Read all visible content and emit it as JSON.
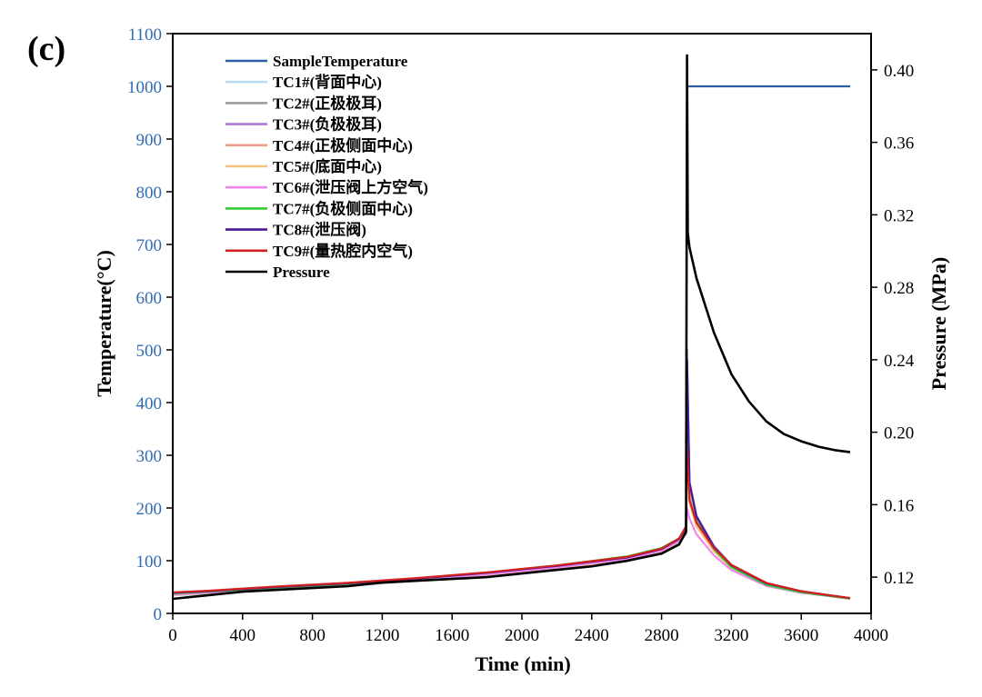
{
  "chart_data": {
    "type": "line",
    "panel_label": "(c)",
    "title": "",
    "xlabel": "Time (min)",
    "ylabel": "Temperature(°C)",
    "y2label": "Pressure (MPa)",
    "xlim": [
      0,
      4000
    ],
    "ylim": [
      0,
      1100
    ],
    "y2lim": [
      0.1,
      0.42
    ],
    "xticks": [
      "0",
      "400",
      "800",
      "1200",
      "1600",
      "2000",
      "2400",
      "2800",
      "3200",
      "3600",
      "4000"
    ],
    "yticks": [
      "0",
      "100",
      "200",
      "300",
      "400",
      "500",
      "600",
      "700",
      "800",
      "900",
      "1000",
      "1100"
    ],
    "y2ticks": [
      "0.12",
      "0.16",
      "0.20",
      "0.24",
      "0.28",
      "0.32",
      "0.36",
      "0.40"
    ],
    "legend_position": "top-left",
    "grid": false,
    "series": [
      {
        "name": "SampleTemperature",
        "color": "#2a5fa5",
        "axis": "left",
        "x": [
          2950,
          3000,
          3400,
          3880
        ],
        "y": [
          1000,
          1000,
          1000,
          1000
        ]
      },
      {
        "name": "TC1#(背面中心)",
        "color": "#b7dcef",
        "axis": "left",
        "x": [
          0,
          200,
          600,
          1000,
          1400,
          1800,
          2200,
          2600,
          2800,
          2900,
          2940,
          2946,
          2960,
          3000,
          3100,
          3200,
          3400,
          3600,
          3880
        ],
        "y": [
          34,
          37,
          45,
          52,
          62,
          73,
          86,
          102,
          117,
          135,
          160,
          380,
          220,
          170,
          120,
          88,
          55,
          40,
          29
        ]
      },
      {
        "name": "TC2#(正极极耳)",
        "color": "#9c9c9c",
        "axis": "left",
        "x": [
          0,
          200,
          600,
          1000,
          1400,
          1800,
          2200,
          2600,
          2800,
          2900,
          2940,
          2946,
          2960,
          3000,
          3100,
          3200,
          3400,
          3600,
          3880
        ],
        "y": [
          37,
          40,
          48,
          55,
          64,
          75,
          88,
          104,
          120,
          138,
          160,
          440,
          240,
          180,
          125,
          90,
          56,
          41,
          29
        ]
      },
      {
        "name": "TC3#(负极极耳)",
        "color": "#b07ad6",
        "axis": "left",
        "x": [
          0,
          200,
          600,
          1000,
          1400,
          1800,
          2200,
          2600,
          2800,
          2900,
          2940,
          2946,
          2960,
          3000,
          3100,
          3200,
          3400,
          3600,
          3880
        ],
        "y": [
          36,
          39,
          47,
          54,
          63,
          74,
          87,
          103,
          119,
          137,
          158,
          500,
          250,
          185,
          128,
          92,
          57,
          41,
          29
        ]
      },
      {
        "name": "TC4#(正极侧面中心)",
        "color": "#f09a8a",
        "axis": "left",
        "x": [
          0,
          200,
          600,
          1000,
          1400,
          1800,
          2200,
          2600,
          2800,
          2900,
          2940,
          2946,
          2960,
          3000,
          3100,
          3200,
          3400,
          3600,
          3880
        ],
        "y": [
          38,
          41,
          49,
          56,
          65,
          76,
          89,
          105,
          121,
          140,
          162,
          420,
          235,
          178,
          124,
          90,
          56,
          41,
          29
        ]
      },
      {
        "name": "TC5#(底面中心)",
        "color": "#f2c27a",
        "axis": "left",
        "x": [
          0,
          200,
          600,
          1000,
          1400,
          1800,
          2200,
          2600,
          2800,
          2900,
          2940,
          2946,
          2960,
          3000,
          3100,
          3200,
          3400,
          3600,
          3880
        ],
        "y": [
          35,
          38,
          46,
          53,
          62,
          73,
          86,
          102,
          118,
          136,
          158,
          300,
          210,
          165,
          118,
          86,
          54,
          40,
          29
        ]
      },
      {
        "name": "TC6#(泄压阀上方空气)",
        "color": "#ee88ee",
        "axis": "left",
        "x": [
          0,
          200,
          600,
          1000,
          1400,
          1800,
          2200,
          2600,
          2800,
          2900,
          2940,
          2946,
          2960,
          3000,
          3100,
          3200,
          3400,
          3600,
          3880
        ],
        "y": [
          36,
          39,
          47,
          54,
          63,
          74,
          87,
          103,
          119,
          137,
          150,
          200,
          180,
          150,
          110,
          82,
          52,
          39,
          28
        ]
      },
      {
        "name": "TC7#(负极侧面中心)",
        "color": "#33cc33",
        "axis": "left",
        "x": [
          0,
          200,
          600,
          1000,
          1400,
          1800,
          2200,
          2600,
          2800,
          2900,
          2940,
          2946,
          2960,
          3000,
          3100,
          3200,
          3400,
          3600,
          3880
        ],
        "y": [
          38,
          41,
          49,
          56,
          66,
          77,
          91,
          108,
          124,
          142,
          165,
          470,
          245,
          182,
          122,
          88,
          54,
          40,
          28
        ]
      },
      {
        "name": "TC8#(泄压阀)",
        "color": "#4a1a9c",
        "axis": "left",
        "x": [
          0,
          200,
          600,
          1000,
          1400,
          1800,
          2200,
          2600,
          2800,
          2900,
          2940,
          2946,
          2960,
          3000,
          3100,
          3200,
          3400,
          3600,
          3880
        ],
        "y": [
          39,
          42,
          50,
          57,
          66,
          77,
          90,
          106,
          122,
          141,
          163,
          480,
          248,
          184,
          126,
          91,
          57,
          42,
          29
        ]
      },
      {
        "name": "TC9#(量热腔内空气)",
        "color": "#d21f1f",
        "axis": "left",
        "x": [
          0,
          200,
          600,
          1000,
          1400,
          1800,
          2200,
          2600,
          2800,
          2900,
          2940,
          2946,
          2960,
          3000,
          3100,
          3200,
          3400,
          3600,
          3880
        ],
        "y": [
          40,
          43,
          51,
          58,
          67,
          78,
          91,
          107,
          123,
          142,
          165,
          310,
          215,
          172,
          124,
          92,
          58,
          42,
          29
        ]
      },
      {
        "name": "Pressure",
        "color": "#000000",
        "axis": "right",
        "x": [
          0,
          200,
          400,
          600,
          800,
          1000,
          1200,
          1400,
          1600,
          1800,
          2000,
          2400,
          2600,
          2800,
          2900,
          2940,
          2946,
          2950,
          2960,
          3000,
          3100,
          3200,
          3300,
          3400,
          3500,
          3600,
          3700,
          3800,
          3880
        ],
        "y": [
          0.108,
          0.11,
          0.112,
          0.113,
          0.114,
          0.115,
          0.117,
          0.118,
          0.119,
          0.12,
          0.122,
          0.126,
          0.129,
          0.133,
          0.138,
          0.145,
          0.408,
          0.31,
          0.302,
          0.285,
          0.255,
          0.232,
          0.217,
          0.206,
          0.199,
          0.195,
          0.192,
          0.19,
          0.189
        ]
      }
    ]
  }
}
